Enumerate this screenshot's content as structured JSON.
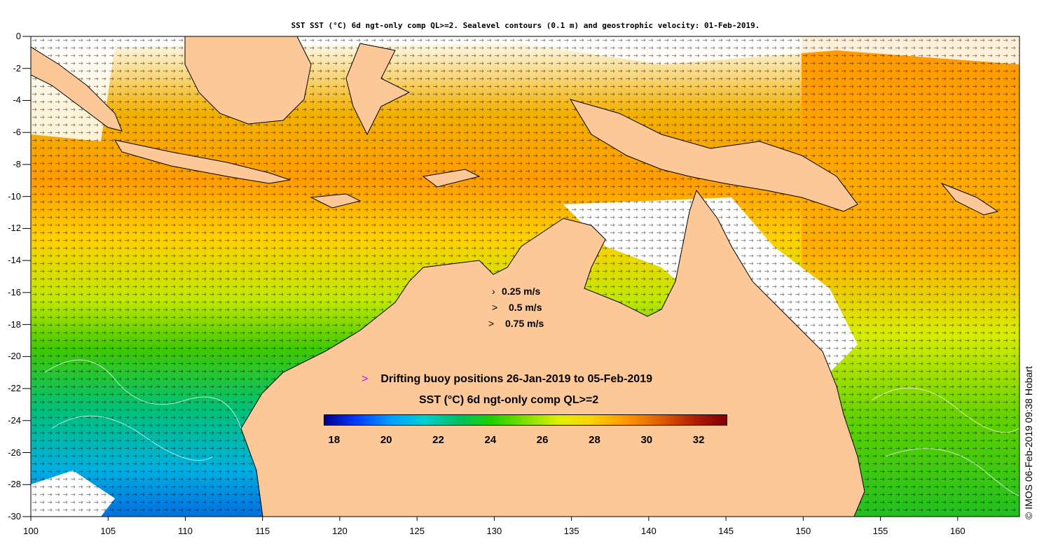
{
  "title": "SST SST (°C) 6d ngt-only comp QL>=2. Sealevel contours (0.1 m) and geostrophic velocity: 01-Feb-2019.",
  "map": {
    "lon_range": [
      100,
      164
    ],
    "lat_range": [
      -30,
      0
    ],
    "land_color": "#fcc898",
    "coastline_color": "#000000",
    "contour_color": "#ffffff",
    "cloud_color": "#ffffff",
    "vector_color": "#000000"
  },
  "y_axis": {
    "ticks": [
      "0",
      "-2",
      "-4",
      "-6",
      "-8",
      "-10",
      "-12",
      "-14",
      "-16",
      "-18",
      "-20",
      "-22",
      "-24",
      "-26",
      "-28",
      "-30"
    ]
  },
  "x_axis": {
    "ticks": [
      "100",
      "105",
      "110",
      "115",
      "120",
      "125",
      "130",
      "135",
      "140",
      "145",
      "150",
      "155",
      "160"
    ]
  },
  "velocity_legend": [
    {
      "label": "0.25 m/s",
      "arrow": "›"
    },
    {
      "label": "0.5 m/s",
      "arrow": ">"
    },
    {
      "label": "0.75 m/s",
      "arrow": ">"
    }
  ],
  "buoy_legend": {
    "marker": ">",
    "label": "Drifting buoy positions 26-Jan-2019 to 05-Feb-2019",
    "marker_color": "#d400ff"
  },
  "colorbar": {
    "title": "SST (°C) 6d ngt-only comp QL>=2",
    "min": 17.6,
    "max": 33.1,
    "ticks": [
      "18",
      "20",
      "22",
      "24",
      "26",
      "28",
      "30",
      "32"
    ],
    "colors": [
      "#00008f",
      "#0040ff",
      "#00a0ff",
      "#00d0d0",
      "#00c060",
      "#20d000",
      "#80e000",
      "#e0f000",
      "#ffd000",
      "#ff9800",
      "#e06000",
      "#b02000",
      "#800000"
    ]
  },
  "credit": "© IMOS 06-Feb-2019 09:38 Hobart"
}
